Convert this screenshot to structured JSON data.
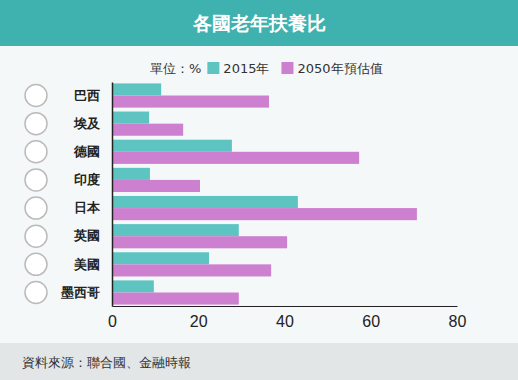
{
  "chart_data": {
    "type": "bar",
    "orientation": "horizontal",
    "title": "各國老年扶養比",
    "subtitle": "單位：%",
    "source": "資料來源：聯合國、金融時報",
    "categories": [
      "巴西",
      "埃及",
      "德國",
      "印度",
      "日本",
      "英國",
      "美國",
      "墨西哥"
    ],
    "series": [
      {
        "name": "2015年",
        "color": "#5ec4c2",
        "values": [
          11.4,
          8.6,
          27.8,
          8.8,
          43.1,
          29.4,
          22.5,
          9.7
        ]
      },
      {
        "name": "2050年預估值",
        "color": "#cd80cf",
        "values": [
          36.4,
          16.5,
          57.3,
          20.4,
          70.7,
          40.6,
          36.9,
          29.4
        ]
      }
    ],
    "xlim": [
      0,
      80
    ],
    "xticks": [
      0,
      20,
      40,
      60,
      80
    ],
    "legend": "top",
    "grid": false
  }
}
